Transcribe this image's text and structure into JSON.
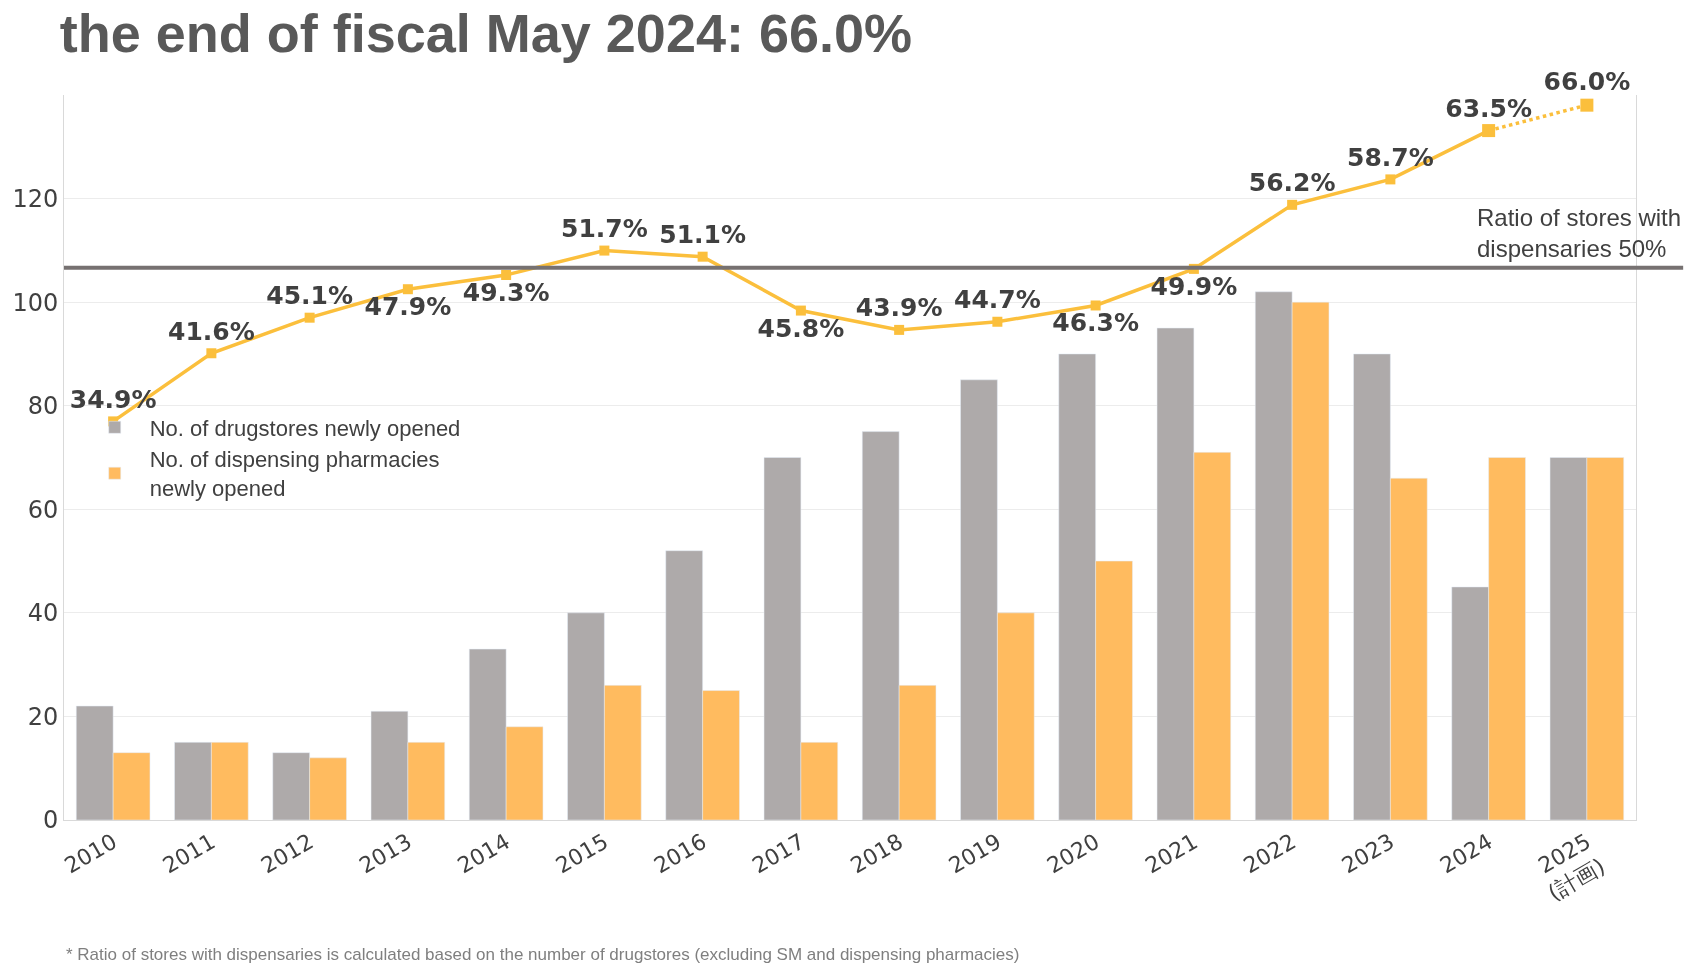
{
  "chart_data": {
    "type": "bar",
    "title": "the end of fiscal May 2024: 66.0%",
    "categories": [
      "2010",
      "2011",
      "2012",
      "2013",
      "2014",
      "2015",
      "2016",
      "2017",
      "2018",
      "2019",
      "2020",
      "2021",
      "2022",
      "2023",
      "2024",
      "2025\n(計画)"
    ],
    "series": [
      {
        "name": "No. of drugstores newly opened",
        "color": "#aeaaaa",
        "values": [
          22,
          15,
          13,
          21,
          33,
          40,
          52,
          70,
          75,
          85,
          90,
          95,
          102,
          90,
          45,
          70
        ]
      },
      {
        "name": "No. of dispensing pharmacies\nnewly opened",
        "color": "#ffbb5f",
        "values": [
          13,
          15,
          12,
          15,
          18,
          26,
          25,
          15,
          26,
          40,
          50,
          71,
          100,
          66,
          70,
          70
        ]
      },
      {
        "type": "line",
        "axis": "y2",
        "color": "#fbbf3c",
        "line_style": "solid",
        "marker": "square",
        "values": [
          34.9,
          41.6,
          45.1,
          47.9,
          49.3,
          51.7,
          51.1,
          45.8,
          43.9,
          44.7,
          46.3,
          49.9,
          56.2,
          58.7,
          63.5,
          null
        ],
        "value_labels": [
          "34.9%",
          "41.6%",
          "45.1%",
          "47.9%",
          "49.3%",
          "51.7%",
          "51.1%",
          "45.8%",
          "43.9%",
          "44.7%",
          "46.3%",
          "49.9%",
          "56.2%",
          "58.7%",
          "63.5%",
          null
        ]
      },
      {
        "type": "line",
        "axis": "y2",
        "color": "#fbbf3c",
        "line_style": "dotted",
        "marker": "square",
        "values": [
          null,
          null,
          null,
          null,
          null,
          null,
          null,
          null,
          null,
          null,
          null,
          null,
          null,
          null,
          63.5,
          66.0
        ],
        "value_labels": [
          null,
          null,
          null,
          null,
          null,
          null,
          null,
          null,
          null,
          null,
          null,
          null,
          null,
          null,
          null,
          "66.0%"
        ]
      }
    ],
    "ylim": [
      0,
      140
    ],
    "yticks": [
      0,
      20,
      40,
      60,
      80,
      100,
      120
    ],
    "y2lim": [
      -4.3,
      67.0
    ],
    "ref_lines": [
      {
        "axis": "y2",
        "value": 50,
        "label": "Ratio of stores with\ndispensaries 50%",
        "color": "#767171"
      }
    ],
    "grid": "y",
    "legend": "left",
    "annotations": [
      "* Ratio of stores with dispensaries is calculated based on the number of drugstores (excluding SM and dispensing pharmacies)"
    ]
  }
}
